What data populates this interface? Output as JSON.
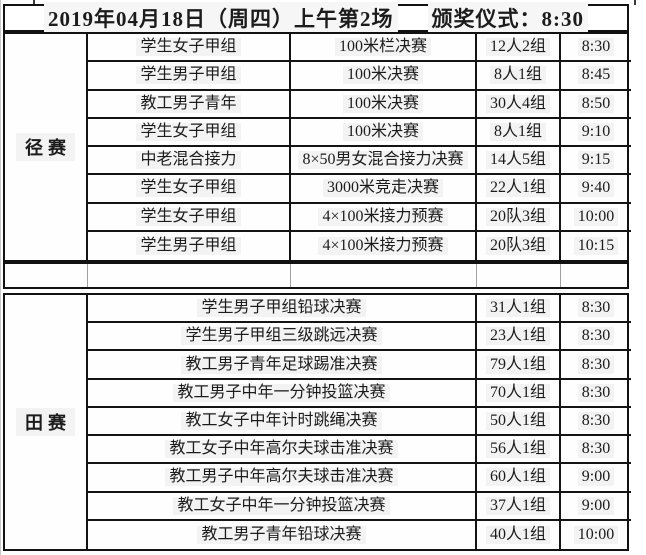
{
  "header": {
    "session": "2019年04月18日（周四）上午第2场",
    "ceremony": "颁奖仪式：8:30"
  },
  "track_section": {
    "category": "径赛",
    "rows": [
      {
        "group": "学生女子甲组",
        "event": "100米栏决赛",
        "entrants": "12人2组",
        "time": "8:30"
      },
      {
        "group": "学生男子甲组",
        "event": "100米决赛",
        "entrants": "8人1组",
        "time": "8:45"
      },
      {
        "group": "教工男子青年",
        "event": "100米决赛",
        "entrants": "30人4组",
        "time": "8:50"
      },
      {
        "group": "学生女子甲组",
        "event": "100米决赛",
        "entrants": "8人1组",
        "time": "9:10"
      },
      {
        "group": "中老混合接力",
        "event": "8×50男女混合接力决赛",
        "entrants": "14人5组",
        "time": "9:15"
      },
      {
        "group": "学生女子甲组",
        "event": "3000米竞走决赛",
        "entrants": "22人1组",
        "time": "9:40"
      },
      {
        "group": "学生女子甲组",
        "event": "4×100米接力预赛",
        "entrants": "20队3组",
        "time": "10:00"
      },
      {
        "group": "学生男子甲组",
        "event": "4×100米接力预赛",
        "entrants": "20队3组",
        "time": "10:15"
      }
    ]
  },
  "field_section": {
    "category": "田赛",
    "rows": [
      {
        "event": "学生男子甲组铅球决赛",
        "entrants": "31人1组",
        "time": "8:30"
      },
      {
        "event": "学生男子甲组三级跳远决赛",
        "entrants": "23人1组",
        "time": "8:30"
      },
      {
        "event": "教工男子青年足球踢准决赛",
        "entrants": "79人1组",
        "time": "8:30"
      },
      {
        "event": "教工男子中年一分钟投篮决赛",
        "entrants": "70人1组",
        "time": "8:30"
      },
      {
        "event": "教工女子中年计时跳绳决赛",
        "entrants": "50人1组",
        "time": "8:30"
      },
      {
        "event": "教工女子中年高尔夫球击准决赛",
        "entrants": "56人1组",
        "time": "8:30"
      },
      {
        "event": "教工男子中年高尔夫球击准决赛",
        "entrants": "60人1组",
        "time": "9:00"
      },
      {
        "event": "教工女子中年一分钟投篮决赛",
        "entrants": "37人1组",
        "time": "9:00"
      },
      {
        "event": "教工男子青年铅球决赛",
        "entrants": "40人1组",
        "time": "10:00"
      }
    ]
  }
}
